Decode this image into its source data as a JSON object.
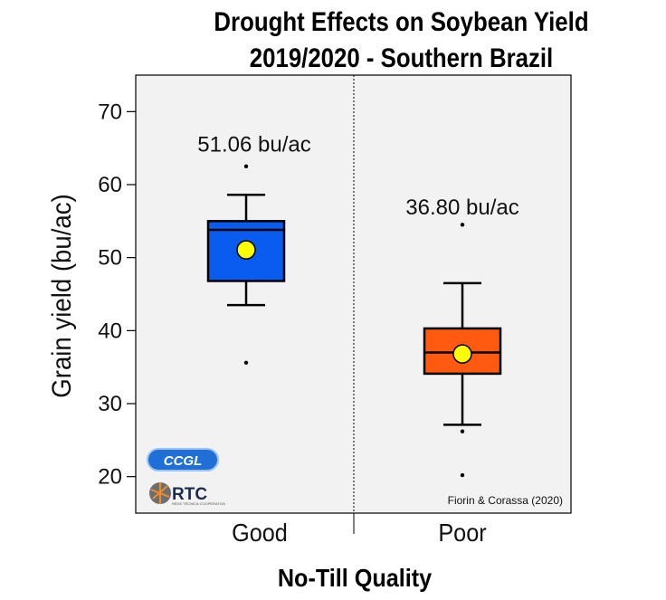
{
  "chart_data": {
    "type": "box",
    "title_lines": [
      "Drought Effects on Soybean Yield",
      "2019/2020 - Southern Brazil"
    ],
    "xlabel": "No-Till Quality",
    "ylabel": "Grain yield (bu/ac)",
    "ylim": [
      15,
      75
    ],
    "yticks": [
      20,
      30,
      40,
      50,
      60,
      70
    ],
    "grid": false,
    "categories": [
      "Good",
      "Poor"
    ],
    "boxes": [
      {
        "category": "Good",
        "whisker_low": 43.5,
        "q1": 46.8,
        "median": 53.8,
        "q3": 55.0,
        "whisker_high": 58.6,
        "mean": 51.06,
        "outliers": [
          62.5,
          35.6
        ],
        "annotation": "51.06 bu/ac",
        "color": "#0a5cf0"
      },
      {
        "category": "Poor",
        "whisker_low": 27.1,
        "q1": 34.1,
        "median": 37.0,
        "q3": 40.3,
        "whisker_high": 46.5,
        "mean": 36.8,
        "outliers": [
          54.5,
          26.2,
          20.2
        ],
        "annotation": "36.80 bu/ac",
        "color": "#ff5a10"
      }
    ],
    "mean_marker_color": "#ffff00",
    "panel_background": "#f2f2f2",
    "credit": "Fiorin & Corassa (2020)"
  },
  "logos": {
    "logo1_text": "CCGL",
    "logo2_text": "RTC",
    "logo2_subtext": "REDE TÉCNICA COOPERATIVA"
  }
}
